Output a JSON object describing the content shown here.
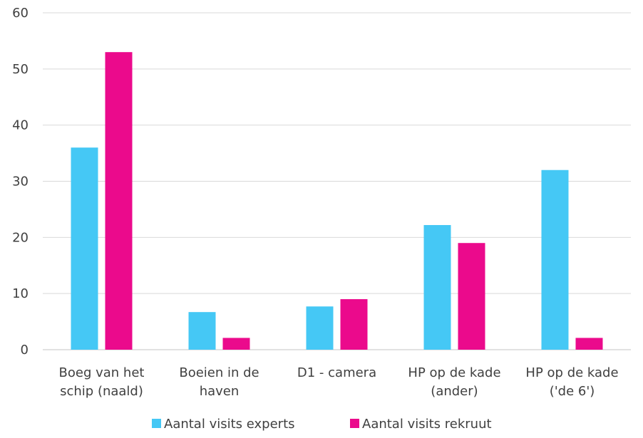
{
  "chart_data": {
    "type": "bar",
    "title": "",
    "xlabel": "",
    "ylabel": "",
    "ylim": [
      0,
      60
    ],
    "yticks": [
      0,
      10,
      20,
      30,
      40,
      50,
      60
    ],
    "grid": true,
    "legend_position": "bottom",
    "categories": [
      [
        "Boeg van het",
        "schip (naald)"
      ],
      [
        "Boeien in de",
        "haven"
      ],
      [
        "D1 - camera"
      ],
      [
        "HP op de kade",
        "(ander)"
      ],
      [
        "HP op de kade",
        "('de 6')"
      ]
    ],
    "series": [
      {
        "name": "Aantal visits experts",
        "color": "#45c8f5",
        "values": [
          36,
          6.7,
          7.7,
          22.2,
          32
        ]
      },
      {
        "name": "Aantal visits rekruut",
        "color": "#eb0a8c",
        "values": [
          53,
          2.1,
          9,
          19,
          2.1
        ]
      }
    ]
  }
}
